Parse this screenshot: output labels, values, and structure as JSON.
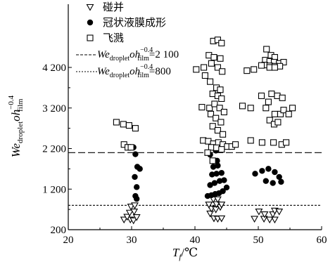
{
  "chart_data": {
    "type": "scatter",
    "xlim": [
      20,
      60
    ],
    "ylim": [
      200,
      5000
    ],
    "x_ticks": [
      20,
      30,
      40,
      50,
      60
    ],
    "y_ticks": [
      200,
      1200,
      2200,
      3200,
      4200
    ],
    "x_tick_labels": [
      "20",
      "30",
      "40",
      "50",
      "60"
    ],
    "y_tick_labels": [
      "200",
      "1 200",
      "2 200",
      "3 200",
      "4 200"
    ],
    "xlabel": {
      "main": "T",
      "sub": "f",
      "unit": "/℃"
    },
    "ylabel": {
      "we": "We",
      "we_sub": "droplet",
      "oh": "oh",
      "oh_sub": "film",
      "oh_sup": "−0.4"
    },
    "legend": [
      {
        "label": "碰并",
        "marker": "triangle-down-open"
      },
      {
        "label": "冠状液膜成形",
        "marker": "circle-filled"
      },
      {
        "label": "飞溅",
        "marker": "square-open"
      },
      {
        "we": "We",
        "we_sub": "droplet",
        "oh": "oh",
        "oh_sub": "film",
        "oh_sup": "−0.4",
        "rest": "=2 100",
        "style": "dashed-long",
        "y": 2100
      },
      {
        "we": "We",
        "we_sub": "droplet",
        "oh": "oh",
        "oh_sub": "film",
        "oh_sup": "−0.4",
        "rest": "=800",
        "style": "dashed-short",
        "y": 800
      }
    ],
    "series": [
      {
        "name": "碰并",
        "marker": "triangle-down-open",
        "points": [
          [
            28.8,
            450
          ],
          [
            29.8,
            450
          ],
          [
            30.3,
            430
          ],
          [
            29.3,
            520
          ],
          [
            30.8,
            510
          ],
          [
            29.7,
            620
          ],
          [
            30.4,
            650
          ],
          [
            29.9,
            770
          ],
          [
            30.5,
            800
          ],
          [
            42.4,
            600
          ],
          [
            43.0,
            480
          ],
          [
            43.6,
            470
          ],
          [
            44.2,
            480
          ],
          [
            42.6,
            720
          ],
          [
            43.3,
            700
          ],
          [
            44.0,
            760
          ],
          [
            42.2,
            820
          ],
          [
            43.4,
            830
          ],
          [
            44.2,
            820
          ],
          [
            42.9,
            950
          ],
          [
            43.6,
            950
          ],
          [
            49.4,
            470
          ],
          [
            50.9,
            470
          ],
          [
            51.8,
            450
          ],
          [
            52.6,
            450
          ],
          [
            51.0,
            580
          ],
          [
            52.3,
            580
          ],
          [
            50.1,
            650
          ],
          [
            52.6,
            670
          ],
          [
            53.3,
            650
          ]
        ]
      },
      {
        "name": "冠状液膜成形",
        "marker": "circle-filled",
        "points": [
          [
            30.3,
            2230
          ],
          [
            30.6,
            2060
          ],
          [
            30.9,
            1750
          ],
          [
            31.3,
            1700
          ],
          [
            30.5,
            1500
          ],
          [
            30.8,
            1250
          ],
          [
            30.6,
            1030
          ],
          [
            30.8,
            960
          ],
          [
            42.0,
            1030
          ],
          [
            42.6,
            1050
          ],
          [
            43.2,
            1080
          ],
          [
            43.8,
            1100
          ],
          [
            44.4,
            1150
          ],
          [
            45.0,
            1240
          ],
          [
            42.4,
            1300
          ],
          [
            43.1,
            1350
          ],
          [
            43.9,
            1400
          ],
          [
            44.6,
            1420
          ],
          [
            42.7,
            1560
          ],
          [
            43.4,
            1580
          ],
          [
            44.2,
            1600
          ],
          [
            42.9,
            1750
          ],
          [
            43.6,
            1780
          ],
          [
            43.5,
            1900
          ],
          [
            42.4,
            2050
          ],
          [
            43.3,
            2150
          ],
          [
            44.0,
            2200
          ],
          [
            49.5,
            1580
          ],
          [
            50.6,
            1650
          ],
          [
            51.6,
            1700
          ],
          [
            52.6,
            1620
          ],
          [
            53.3,
            1500
          ],
          [
            51.2,
            1400
          ],
          [
            52.3,
            1350
          ],
          [
            53.6,
            1380
          ]
        ]
      },
      {
        "name": "飞溅",
        "marker": "square-open",
        "points": [
          [
            27.6,
            2850
          ],
          [
            28.7,
            2800
          ],
          [
            29.6,
            2770
          ],
          [
            30.6,
            2700
          ],
          [
            28.8,
            2300
          ],
          [
            29.4,
            2230
          ],
          [
            29.9,
            2230
          ],
          [
            42.9,
            4850
          ],
          [
            43.6,
            4880
          ],
          [
            44.2,
            4800
          ],
          [
            42.2,
            4500
          ],
          [
            43.0,
            4450
          ],
          [
            44.0,
            4420
          ],
          [
            41.4,
            4200
          ],
          [
            42.6,
            4300
          ],
          [
            43.6,
            4200
          ],
          [
            44.3,
            4100
          ],
          [
            40.2,
            4150
          ],
          [
            41.6,
            4000
          ],
          [
            42.4,
            3850
          ],
          [
            43.4,
            3700
          ],
          [
            44.0,
            3650
          ],
          [
            42.8,
            3550
          ],
          [
            43.6,
            3500
          ],
          [
            44.2,
            3430
          ],
          [
            41.1,
            3220
          ],
          [
            42.3,
            3200
          ],
          [
            43.1,
            3300
          ],
          [
            43.9,
            3200
          ],
          [
            44.6,
            3100
          ],
          [
            42.5,
            3050
          ],
          [
            43.3,
            2950
          ],
          [
            44.1,
            2850
          ],
          [
            42.8,
            2750
          ],
          [
            43.6,
            2650
          ],
          [
            44.4,
            2550
          ],
          [
            41.3,
            2400
          ],
          [
            42.1,
            2380
          ],
          [
            42.9,
            2320
          ],
          [
            43.7,
            2350
          ],
          [
            44.4,
            2300
          ],
          [
            45.1,
            2250
          ],
          [
            45.8,
            2250
          ],
          [
            46.4,
            2300
          ],
          [
            42.6,
            2230
          ],
          [
            43.4,
            2220
          ],
          [
            44.2,
            2180
          ],
          [
            42.0,
            2100
          ],
          [
            42.8,
            1900
          ],
          [
            51.3,
            4650
          ],
          [
            52.0,
            4500
          ],
          [
            52.6,
            4450
          ],
          [
            51.1,
            4380
          ],
          [
            51.8,
            4350
          ],
          [
            52.5,
            4330
          ],
          [
            53.3,
            4300
          ],
          [
            54.0,
            4330
          ],
          [
            51.0,
            4260
          ],
          [
            51.8,
            4240
          ],
          [
            52.6,
            4230
          ],
          [
            53.4,
            4230
          ],
          [
            48.2,
            4120
          ],
          [
            49.3,
            4150
          ],
          [
            50.5,
            4250
          ],
          [
            51.8,
            4200
          ],
          [
            52.6,
            4200
          ],
          [
            47.5,
            3250
          ],
          [
            48.8,
            3200
          ],
          [
            50.5,
            3500
          ],
          [
            51.2,
            3200
          ],
          [
            51.6,
            3350
          ],
          [
            52.1,
            3550
          ],
          [
            53.0,
            3500
          ],
          [
            53.8,
            3450
          ],
          [
            52.6,
            3050
          ],
          [
            53.5,
            3050
          ],
          [
            51.8,
            2900
          ],
          [
            52.5,
            2800
          ],
          [
            53.1,
            2850
          ],
          [
            54.0,
            3150
          ],
          [
            54.8,
            3050
          ],
          [
            55.4,
            3200
          ],
          [
            48.8,
            2400
          ],
          [
            50.6,
            2350
          ],
          [
            52.4,
            2350
          ],
          [
            53.7,
            2300
          ],
          [
            54.4,
            2350
          ]
        ]
      }
    ]
  }
}
